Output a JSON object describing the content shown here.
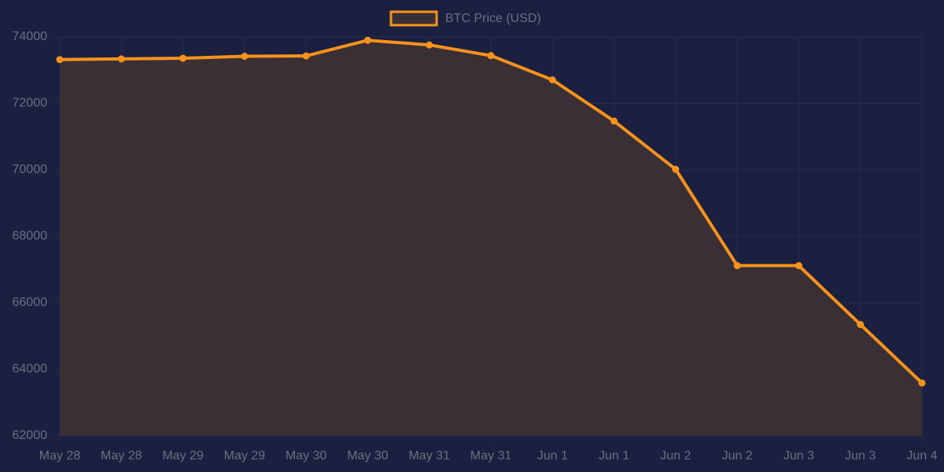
{
  "chart_data": {
    "type": "line",
    "categories": [
      "May 28",
      "May 28",
      "May 29",
      "May 29",
      "May 30",
      "May 30",
      "May 31",
      "May 31",
      "Jun 1",
      "Jun 1",
      "Jun 2",
      "Jun 2",
      "Jun 3",
      "Jun 3",
      "Jun 4"
    ],
    "series": [
      {
        "name": "BTC Price (USD)",
        "color": "#f7931a",
        "fill": "#3b2f36",
        "values": [
          73320,
          73340,
          73360,
          73420,
          73430,
          73900,
          73760,
          73440,
          72710,
          71470,
          70020,
          67120,
          67120,
          65350,
          63590
        ]
      }
    ],
    "ylim": [
      62000,
      74000
    ],
    "yticks": [
      62000,
      64000,
      66000,
      68000,
      70000,
      72000,
      74000
    ],
    "grid": true,
    "legend": "top"
  }
}
